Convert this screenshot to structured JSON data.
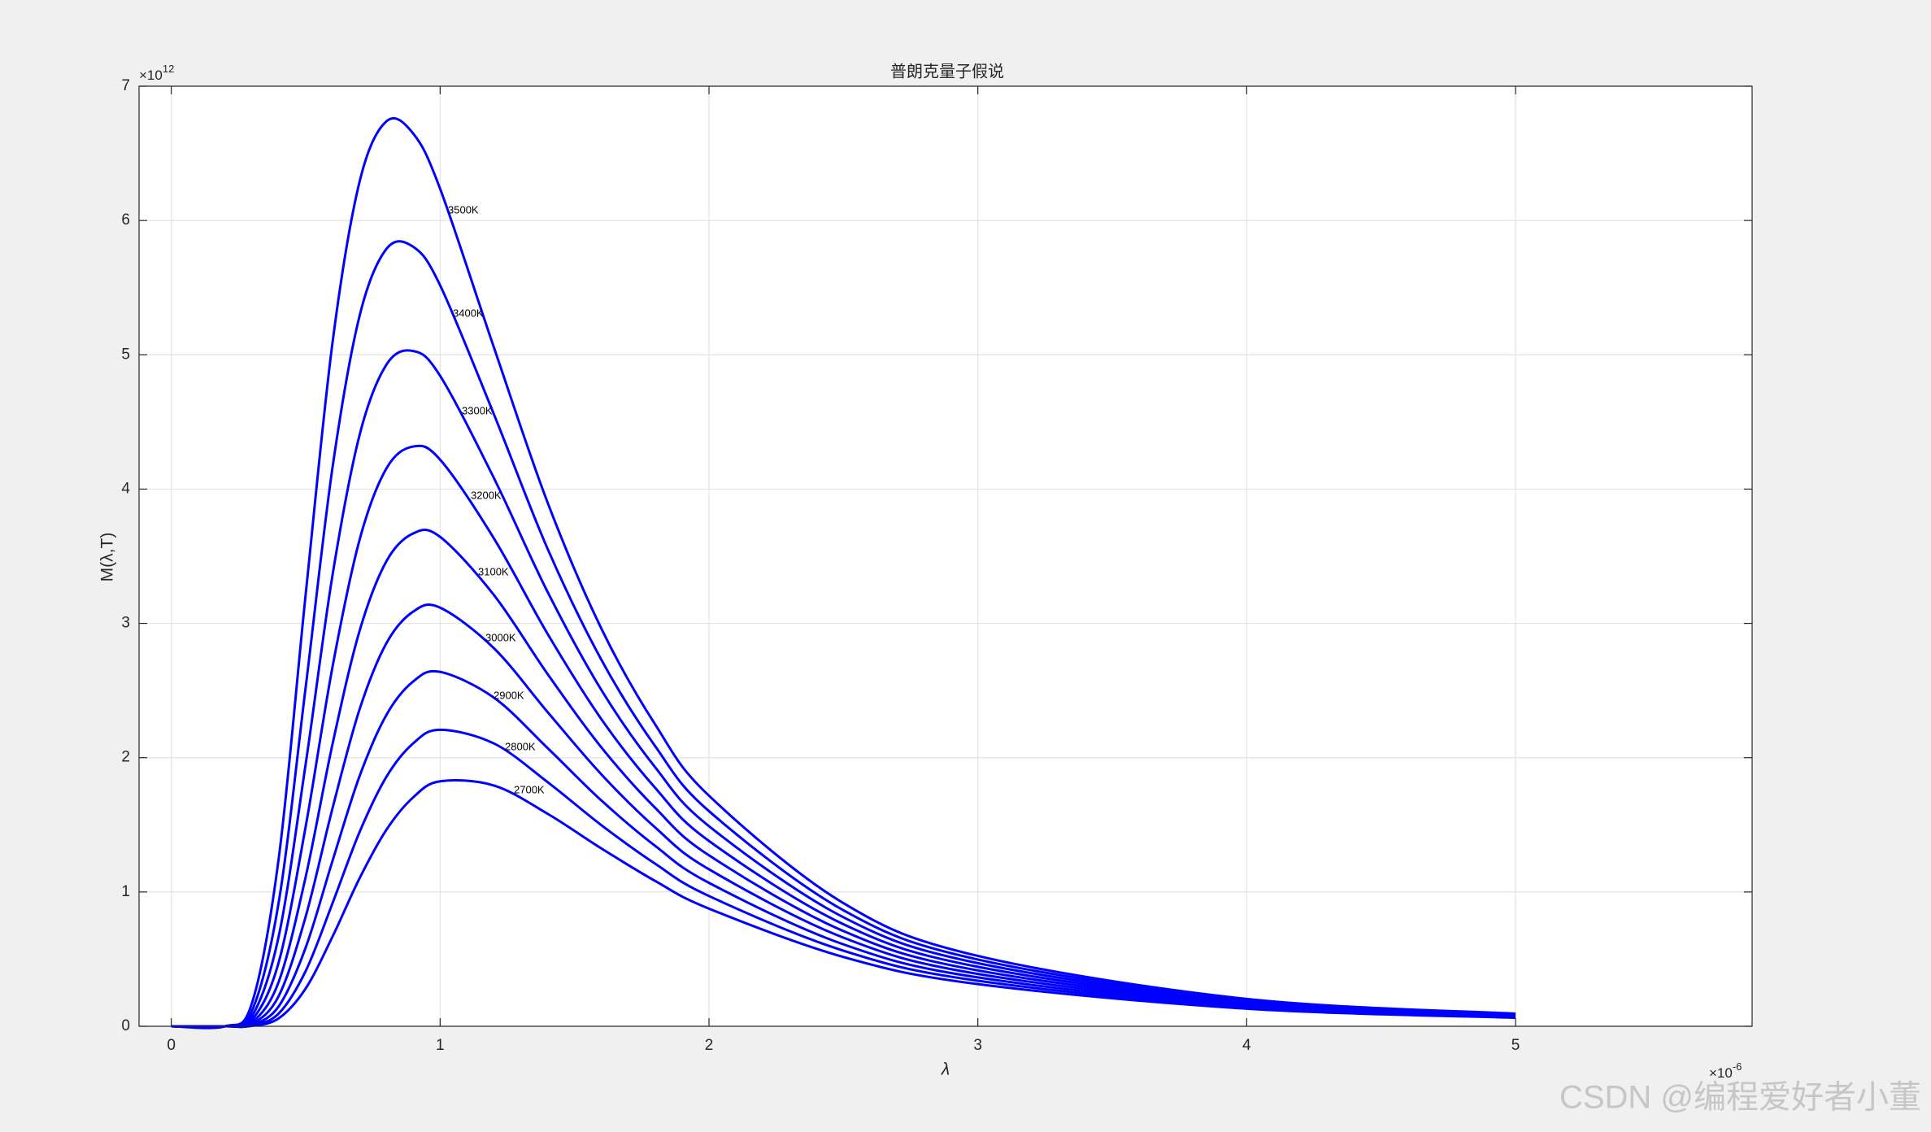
{
  "chart_data": {
    "type": "line",
    "title": "普朗克量子假说",
    "x_label": "λ",
    "y_label": "M(λ,T)",
    "x_exponent": {
      "base": "×10",
      "power": "-6"
    },
    "y_exponent": {
      "base": "×10",
      "power": "12"
    },
    "x": [
      0,
      0.2,
      0.3,
      0.4,
      0.5,
      0.6,
      0.7,
      0.8,
      0.9,
      1.0,
      1.2,
      1.4,
      1.6,
      1.8,
      2.0,
      2.5,
      3.0,
      4.0,
      5.0
    ],
    "series": [
      {
        "name": "3500K",
        "color": "#0000ff",
        "values": [
          0,
          0,
          0.172,
          1.257,
          3.219,
          5.096,
          6.286,
          6.738,
          6.647,
          6.236,
          5.055,
          3.898,
          2.96,
          2.247,
          1.717,
          0.917,
          0.524,
          0.2036,
          0.0939
        ]
      },
      {
        "name": "3400K",
        "color": "#0000ff",
        "values": [
          0,
          0,
          0.115,
          0.929,
          2.527,
          4.165,
          5.287,
          5.788,
          5.804,
          5.517,
          4.557,
          3.554,
          2.728,
          2.085,
          1.602,
          0.864,
          0.497,
          0.1943,
          0.0899
        ]
      },
      {
        "name": "3300K",
        "color": "#0000ff",
        "values": [
          0,
          0,
          0.075,
          0.675,
          1.955,
          3.363,
          4.4,
          4.926,
          5.028,
          4.843,
          4.082,
          3.233,
          2.503,
          1.928,
          1.49,
          0.812,
          0.47,
          0.1851,
          0.086
        ]
      },
      {
        "name": "3200K",
        "color": "#0000ff",
        "values": [
          0,
          0,
          0.048,
          0.48,
          1.489,
          2.68,
          3.62,
          4.153,
          4.317,
          4.219,
          3.633,
          2.921,
          2.286,
          1.775,
          1.38,
          0.76,
          0.443,
          0.1759,
          0.0821
        ]
      },
      {
        "name": "3100K",
        "color": "#0000ff",
        "values": [
          0,
          0,
          0.029,
          0.334,
          1.114,
          2.104,
          2.942,
          3.462,
          3.67,
          3.644,
          3.211,
          2.622,
          2.076,
          1.626,
          1.273,
          0.709,
          0.416,
          0.1668,
          0.0782
        ]
      },
      {
        "name": "3000K",
        "color": "#0000ff",
        "values": [
          0,
          0,
          0.018,
          0.227,
          0.818,
          1.626,
          2.358,
          2.852,
          3.088,
          3.117,
          2.815,
          2.339,
          1.875,
          1.48,
          1.169,
          0.66,
          0.39,
          0.1577,
          0.0744
        ]
      },
      {
        "name": "2900K",
        "color": "#0000ff",
        "values": [
          0,
          0,
          0.01,
          0.15,
          0.587,
          1.234,
          1.861,
          2.318,
          2.568,
          2.639,
          2.447,
          2.071,
          1.681,
          1.343,
          1.068,
          0.61,
          0.364,
          0.1487,
          0.0705
        ]
      },
      {
        "name": "2800K",
        "color": "#0000ff",
        "values": [
          0,
          0,
          0.0056,
          0.096,
          0.412,
          0.918,
          1.445,
          1.857,
          2.107,
          2.208,
          2.106,
          1.818,
          1.497,
          1.21,
          0.97,
          0.563,
          0.339,
          0.1398,
          0.0667
        ]
      },
      {
        "name": "2700K",
        "color": "#0000ff",
        "values": [
          0,
          0,
          0.003,
          0.06,
          0.282,
          0.669,
          1.101,
          1.463,
          1.705,
          1.824,
          1.793,
          1.582,
          1.324,
          1.082,
          0.876,
          0.516,
          0.314,
          0.131,
          0.0629
        ]
      }
    ],
    "xlim": [
      -0.12,
      5.88
    ],
    "ylim": [
      0,
      7
    ],
    "xticks": [
      0,
      1,
      2,
      3,
      4,
      5
    ],
    "yticks": [
      0,
      1,
      2,
      3,
      4,
      5,
      6,
      7
    ],
    "grid": true
  },
  "watermark": "CSDN @编程爱好者小董"
}
